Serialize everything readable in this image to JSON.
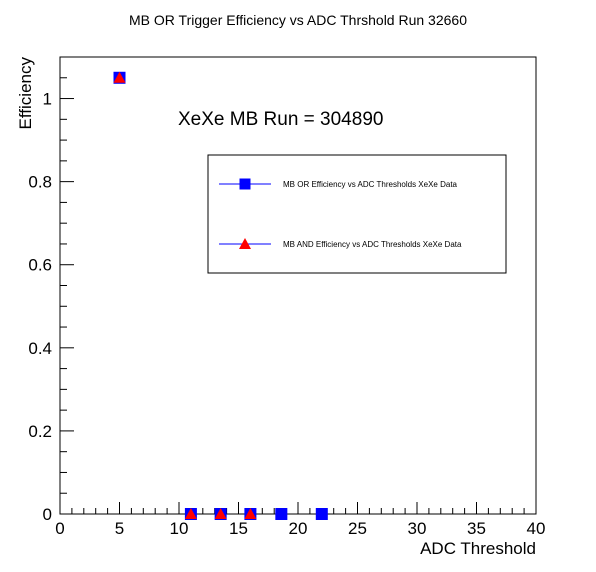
{
  "chart_data": {
    "type": "scatter",
    "title": "MB OR Trigger Efficiency vs ADC Thrshold Run 32660",
    "annotation": "XeXe MB Run = 304890",
    "xlabel": "ADC Threshold",
    "ylabel": "Efficiency",
    "xlim": [
      0,
      40
    ],
    "ylim": [
      0,
      1.1
    ],
    "x_ticks": [
      0,
      5,
      10,
      15,
      20,
      25,
      30,
      35,
      40
    ],
    "y_ticks": [
      0,
      0.2,
      0.4,
      0.6,
      0.8,
      1
    ],
    "legend_position": "upper-right",
    "grid": false,
    "series": [
      {
        "name": "MB OR Efficiency vs ADC Thresholds XeXe Data",
        "marker": "square",
        "color": "#0000ff",
        "x": [
          5,
          11,
          13.5,
          16,
          18.6,
          22
        ],
        "y": [
          1.05,
          0,
          0,
          0,
          0,
          0
        ]
      },
      {
        "name": "MB AND Efficiency vs ADC Thresholds XeXe Data",
        "marker": "triangle",
        "color": "#ff0000",
        "x": [
          5,
          11,
          13.5,
          16
        ],
        "y": [
          1.05,
          0,
          0,
          0
        ]
      }
    ]
  }
}
